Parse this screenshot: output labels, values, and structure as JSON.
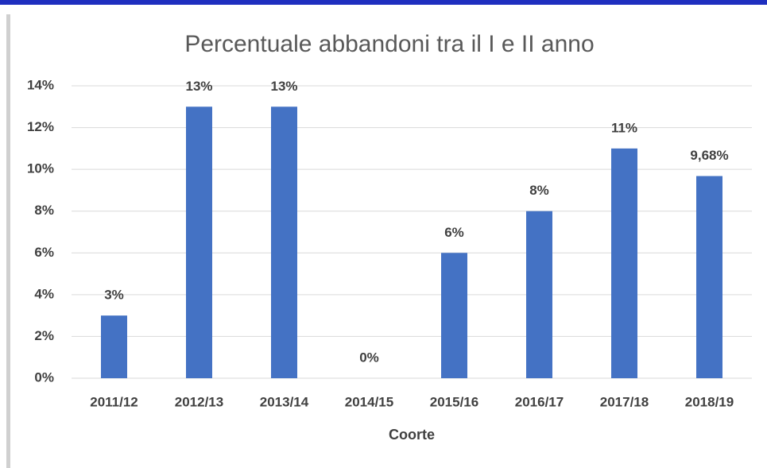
{
  "chart_data": {
    "type": "bar",
    "title": "Percentuale abbandoni tra il I e II anno",
    "x_label": "Coorte",
    "categories": [
      "2011/12",
      "2012/13",
      "2013/14",
      "2014/15",
      "2015/16",
      "2016/17",
      "2017/18",
      "2018/19"
    ],
    "values": [
      3,
      13,
      13,
      0,
      6,
      8,
      11,
      9.68
    ],
    "value_labels": [
      "3%",
      "13%",
      "13%",
      "0%",
      "6%",
      "8%",
      "11%",
      "9,68%"
    ],
    "color": "#4472c4",
    "ylim": [
      0,
      14
    ],
    "yticks": [
      {
        "value": 0,
        "label": "0%"
      },
      {
        "value": 2,
        "label": "2%"
      },
      {
        "value": 4,
        "label": "4%"
      },
      {
        "value": 6,
        "label": "6%"
      },
      {
        "value": 8,
        "label": "8%"
      },
      {
        "value": 10,
        "label": "10%"
      },
      {
        "value": 12,
        "label": "12%"
      },
      {
        "value": 14,
        "label": "14%"
      }
    ],
    "grid": true
  }
}
